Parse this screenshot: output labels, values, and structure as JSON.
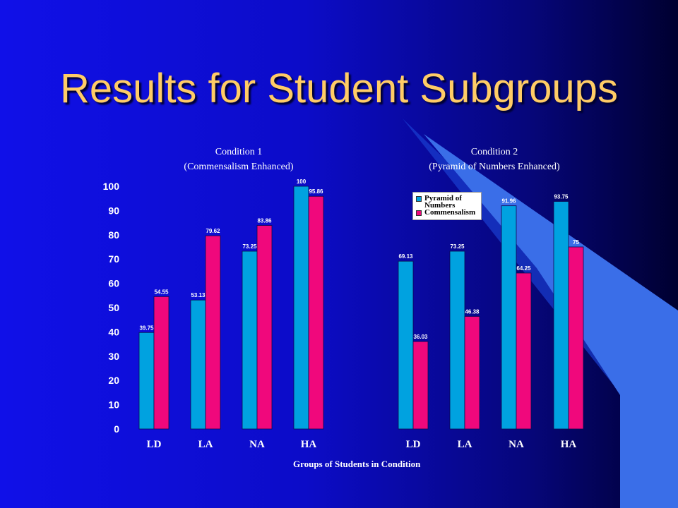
{
  "slide": {
    "title": "Results for Student Subgroups"
  },
  "colors": {
    "pyramid": "#00a2e0",
    "commensalism": "#f0087c",
    "title": "#ffcc66",
    "deco_stripe": "#3a6ee8"
  },
  "chart_data": {
    "type": "bar",
    "ylim": [
      0,
      100
    ],
    "yticks": [
      "0",
      "10",
      "20",
      "30",
      "40",
      "50",
      "60",
      "70",
      "80",
      "90",
      "100"
    ],
    "xlabel": "Groups of Students in Condition",
    "legend": {
      "placement": "top-right",
      "items": [
        "Pyramid of Numbers",
        "Commensalism"
      ]
    },
    "panels": [
      {
        "title_line1": "Condition 1",
        "title_line2": "(Commensalism Enhanced)",
        "categories": [
          "LD",
          "LA",
          "NA",
          "HA"
        ],
        "series": [
          {
            "name": "Pyramid of Numbers",
            "values": [
              39.75,
              53.13,
              73.25,
              100
            ],
            "labels": [
              "39.75",
              "53.13",
              "73.25",
              "100"
            ]
          },
          {
            "name": "Commensalism",
            "values": [
              54.55,
              79.62,
              83.86,
              95.86
            ],
            "labels": [
              "54.55",
              "79.62",
              "83.86",
              "95.86"
            ]
          }
        ]
      },
      {
        "title_line1": "Condition 2",
        "title_line2": "(Pyramid of Numbers Enhanced)",
        "categories": [
          "LD",
          "LA",
          "NA",
          "HA"
        ],
        "series": [
          {
            "name": "Pyramid of Numbers",
            "values": [
              69.13,
              73.25,
              91.96,
              93.75
            ],
            "labels": [
              "69.13",
              "73.25",
              "91.96",
              "93.75"
            ]
          },
          {
            "name": "Commensalism",
            "values": [
              36.03,
              46.38,
              64.25,
              75
            ],
            "labels": [
              "36.03",
              "46.38",
              "64.25",
              "75"
            ]
          }
        ]
      }
    ]
  }
}
